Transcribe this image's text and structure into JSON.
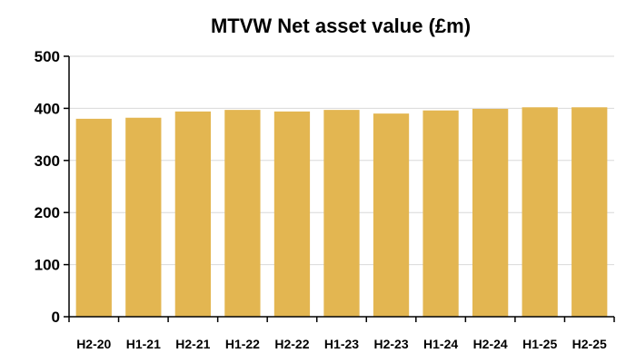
{
  "chart_data": {
    "type": "bar",
    "title": "MTVW Net asset value (£m)",
    "xlabel": "",
    "ylabel": "",
    "categories": [
      "H2-20",
      "H1-21",
      "H2-21",
      "H1-22",
      "H2-22",
      "H1-23",
      "H2-23",
      "H1-24",
      "H2-24",
      "H1-25",
      "H2-25"
    ],
    "values": [
      380,
      382,
      394,
      397,
      394,
      397,
      390,
      396,
      399,
      402,
      402
    ],
    "ylim": [
      0,
      500
    ],
    "yticks": [
      0,
      100,
      200,
      300,
      400,
      500
    ],
    "grid": true,
    "legend": "none",
    "bar_color": "#E3B651",
    "grid_color": "#D9D9D9",
    "axis_color": "#000000"
  }
}
